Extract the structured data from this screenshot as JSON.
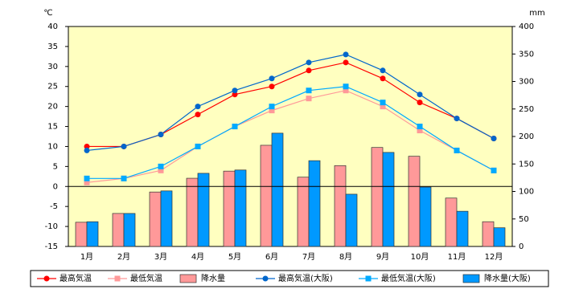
{
  "chart_data": {
    "type": "combo",
    "y_label": "℃",
    "y2_label": "mm",
    "categories": [
      "1月",
      "2月",
      "3月",
      "4月",
      "5月",
      "6月",
      "7月",
      "8月",
      "9月",
      "10月",
      "11月",
      "12月"
    ],
    "ylim": [
      -15,
      40
    ],
    "yticks": [
      -15,
      -10,
      -5,
      0,
      5,
      10,
      15,
      20,
      25,
      30,
      35,
      40
    ],
    "y2lim": [
      0,
      400
    ],
    "y2ticks": [
      0,
      50,
      100,
      150,
      200,
      250,
      300,
      350,
      400
    ],
    "background": "#ffffc0",
    "series": [
      {
        "name": "最高気温",
        "type": "line",
        "marker": "circle",
        "color": "#ff0000",
        "values": [
          10,
          10,
          13,
          18,
          23,
          25,
          29,
          31,
          27,
          21,
          17,
          12
        ]
      },
      {
        "name": "最低気温",
        "type": "line",
        "marker": "square",
        "color": "#ff9999",
        "values": [
          1,
          2,
          4,
          10,
          15,
          19,
          22,
          24,
          20,
          14,
          9,
          4
        ]
      },
      {
        "name": "降水量",
        "type": "bar",
        "axis": "y2",
        "color": "#ff9999",
        "values": [
          44,
          60,
          99,
          124,
          137,
          184,
          126,
          147,
          180,
          164,
          88,
          45
        ]
      },
      {
        "name": "最高気温(大阪)",
        "type": "line",
        "marker": "circle",
        "color": "#0066cc",
        "values": [
          9,
          10,
          13,
          20,
          24,
          27,
          31,
          33,
          29,
          23,
          17,
          12
        ]
      },
      {
        "name": "最低気温(大阪)",
        "type": "line",
        "marker": "square",
        "color": "#00aaff",
        "values": [
          2,
          2,
          5,
          10,
          15,
          20,
          24,
          25,
          21,
          15,
          9,
          4
        ]
      },
      {
        "name": "降水量(大阪)",
        "type": "bar",
        "axis": "y2",
        "color": "#0099ff",
        "values": [
          45,
          60,
          101,
          133,
          139,
          206,
          156,
          95,
          171,
          108,
          64,
          34
        ]
      }
    ]
  }
}
